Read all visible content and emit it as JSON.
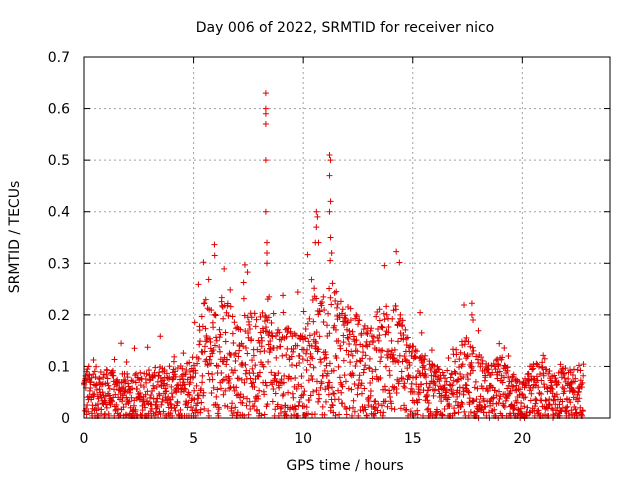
{
  "chart_data": {
    "type": "scatter",
    "title": "Day 006 of 2022, SRMTID for receiver nico",
    "xlabel": "GPS time / hours",
    "ylabel": "SRMTID / TECUs",
    "xlim": [
      0,
      24
    ],
    "ylim": [
      0,
      0.7
    ],
    "xticks": [
      0,
      5,
      10,
      15,
      20
    ],
    "xtick_labels": [
      "0",
      "5",
      "10",
      "15",
      "20"
    ],
    "yticks": [
      0,
      0.1,
      0.2,
      0.3,
      0.4,
      0.5,
      0.6,
      0.7
    ],
    "ytick_labels": [
      "0",
      "0.1",
      "0.2",
      "0.3",
      "0.4",
      "0.5",
      "0.6",
      "0.7"
    ],
    "grid": true,
    "marker": "+",
    "color": "#e00000",
    "notable_points": [
      {
        "x": 8.3,
        "y": 0.63
      },
      {
        "x": 8.3,
        "y": 0.6
      },
      {
        "x": 8.3,
        "y": 0.59
      },
      {
        "x": 8.3,
        "y": 0.57
      },
      {
        "x": 8.3,
        "y": 0.5
      },
      {
        "x": 8.3,
        "y": 0.4
      },
      {
        "x": 8.35,
        "y": 0.34
      },
      {
        "x": 8.35,
        "y": 0.32
      },
      {
        "x": 8.35,
        "y": 0.3
      },
      {
        "x": 10.6,
        "y": 0.4
      },
      {
        "x": 10.65,
        "y": 0.39
      },
      {
        "x": 10.6,
        "y": 0.37
      },
      {
        "x": 10.55,
        "y": 0.34
      },
      {
        "x": 10.7,
        "y": 0.34
      },
      {
        "x": 11.2,
        "y": 0.51
      },
      {
        "x": 11.25,
        "y": 0.5
      },
      {
        "x": 11.2,
        "y": 0.47
      },
      {
        "x": 11.25,
        "y": 0.42
      },
      {
        "x": 11.2,
        "y": 0.4
      },
      {
        "x": 11.25,
        "y": 0.35
      },
      {
        "x": 11.3,
        "y": 0.32
      },
      {
        "x": 17.7,
        "y": 0.2
      },
      {
        "x": 17.75,
        "y": 0.19
      },
      {
        "x": 18.0,
        "y": 0.0
      },
      {
        "x": 18.5,
        "y": 0.0
      },
      {
        "x": 18.9,
        "y": 0.0
      },
      {
        "x": 19.9,
        "y": 0.0
      },
      {
        "x": 20.1,
        "y": 0.0
      },
      {
        "x": 21.4,
        "y": 0.0
      }
    ],
    "envelope": [
      {
        "x": 0,
        "y": 0.05
      },
      {
        "x": 1,
        "y": 0.045
      },
      {
        "x": 2,
        "y": 0.04
      },
      {
        "x": 3,
        "y": 0.045
      },
      {
        "x": 4,
        "y": 0.05
      },
      {
        "x": 5,
        "y": 0.06
      },
      {
        "x": 5.5,
        "y": 0.12
      },
      {
        "x": 6,
        "y": 0.11
      },
      {
        "x": 6.5,
        "y": 0.13
      },
      {
        "x": 7,
        "y": 0.09
      },
      {
        "x": 7.5,
        "y": 0.1
      },
      {
        "x": 8,
        "y": 0.11
      },
      {
        "x": 8.5,
        "y": 0.12
      },
      {
        "x": 9,
        "y": 0.09
      },
      {
        "x": 10,
        "y": 0.08
      },
      {
        "x": 10.5,
        "y": 0.13
      },
      {
        "x": 11,
        "y": 0.12
      },
      {
        "x": 11.5,
        "y": 0.14
      },
      {
        "x": 12,
        "y": 0.11
      },
      {
        "x": 12.5,
        "y": 0.1
      },
      {
        "x": 13,
        "y": 0.09
      },
      {
        "x": 13.5,
        "y": 0.11
      },
      {
        "x": 14,
        "y": 0.12
      },
      {
        "x": 14.5,
        "y": 0.1
      },
      {
        "x": 15,
        "y": 0.07
      },
      {
        "x": 15.5,
        "y": 0.06
      },
      {
        "x": 16,
        "y": 0.05
      },
      {
        "x": 16.5,
        "y": 0.04
      },
      {
        "x": 17,
        "y": 0.07
      },
      {
        "x": 17.5,
        "y": 0.08
      },
      {
        "x": 18,
        "y": 0.06
      },
      {
        "x": 18.5,
        "y": 0.05
      },
      {
        "x": 19,
        "y": 0.06
      },
      {
        "x": 19.5,
        "y": 0.04
      },
      {
        "x": 20,
        "y": 0.03
      },
      {
        "x": 20.5,
        "y": 0.05
      },
      {
        "x": 21,
        "y": 0.06
      },
      {
        "x": 21.5,
        "y": 0.04
      },
      {
        "x": 22,
        "y": 0.05
      },
      {
        "x": 22.8,
        "y": 0.05
      }
    ]
  }
}
